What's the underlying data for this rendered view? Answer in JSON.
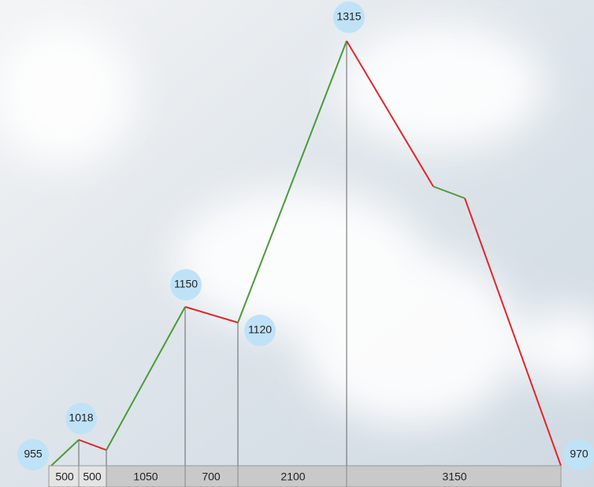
{
  "elevations": [
    955,
    1018,
    1150,
    1120,
    1315,
    970
  ],
  "distances": [
    500,
    500,
    1050,
    700,
    2100,
    3150
  ]
}
